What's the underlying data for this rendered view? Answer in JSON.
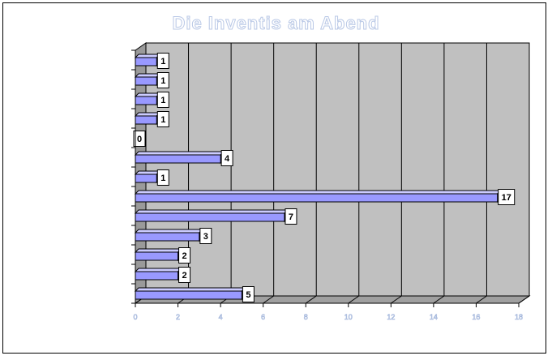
{
  "chart_data": {
    "type": "bar",
    "orientation": "horizontal",
    "title": "Die Inventis am Abend",
    "xlim": [
      0,
      18
    ],
    "x_ticks": [
      "0",
      "2",
      "4",
      "6",
      "8",
      "10",
      "12",
      "14",
      "16",
      "18"
    ],
    "categories": [
      "",
      "",
      "",
      "",
      "",
      "",
      "",
      "",
      "",
      "",
      "",
      "",
      ""
    ],
    "values": [
      1,
      1,
      1,
      1,
      0,
      4,
      1,
      17,
      7,
      3,
      2,
      2,
      5
    ],
    "bar_color": "#9999ff",
    "plot_wall_color": "#c0c0c0",
    "grid": true,
    "legend": "none"
  }
}
